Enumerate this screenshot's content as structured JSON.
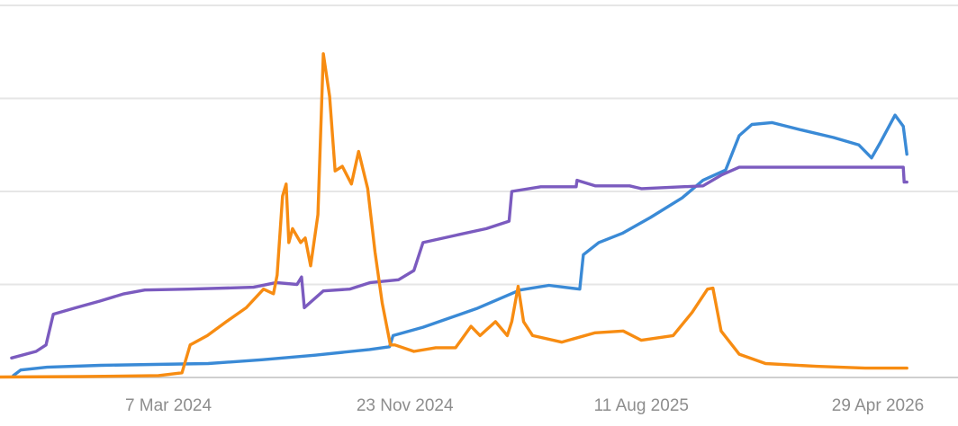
{
  "chart_data": {
    "type": "line",
    "title": "",
    "xlabel": "",
    "ylabel": "",
    "grid": true,
    "legend": "none",
    "x_axis": {
      "type": "date",
      "tick_labels": [
        "7 Mar 2024",
        "23 Nov 2024",
        "11 Aug 2025",
        "29 Apr 2026"
      ],
      "tick_dates": [
        "2024-03-07",
        "2024-11-23",
        "2025-08-11",
        "2026-04-29"
      ]
    },
    "y_axis": {
      "range": [
        0,
        4
      ],
      "gridlines": [
        0,
        1,
        2,
        3,
        4
      ],
      "tick_labels_visible": false
    },
    "series": [
      {
        "color": "#3a8ad6",
        "points": [
          [
            "2023-09-18",
            0.02
          ],
          [
            "2023-09-26",
            0.08
          ],
          [
            "2023-10-25",
            0.11
          ],
          [
            "2023-12-23",
            0.13
          ],
          [
            "2024-02-20",
            0.14
          ],
          [
            "2024-04-20",
            0.15
          ],
          [
            "2024-06-18",
            0.19
          ],
          [
            "2024-08-16",
            0.24
          ],
          [
            "2024-10-15",
            0.3
          ],
          [
            "2024-11-06",
            0.33
          ],
          [
            "2024-11-10",
            0.45
          ],
          [
            "2024-12-13",
            0.54
          ],
          [
            "2025-02-10",
            0.74
          ],
          [
            "2025-03-30",
            0.94
          ],
          [
            "2025-05-01",
            0.99
          ],
          [
            "2025-06-04",
            0.95
          ],
          [
            "2025-06-08",
            1.32
          ],
          [
            "2025-06-25",
            1.45
          ],
          [
            "2025-07-21",
            1.55
          ],
          [
            "2025-08-21",
            1.72
          ],
          [
            "2025-09-25",
            1.93
          ],
          [
            "2025-10-18",
            2.12
          ],
          [
            "2025-11-12",
            2.23
          ],
          [
            "2025-11-27",
            2.6
          ],
          [
            "2025-12-11",
            2.72
          ],
          [
            "2026-01-02",
            2.74
          ],
          [
            "2026-02-04",
            2.66
          ],
          [
            "2026-03-11",
            2.58
          ],
          [
            "2026-04-08",
            2.5
          ],
          [
            "2026-04-22",
            2.36
          ],
          [
            "2026-05-02",
            2.53
          ],
          [
            "2026-05-18",
            2.82
          ],
          [
            "2026-05-27",
            2.7
          ],
          [
            "2026-05-31",
            2.4
          ]
        ]
      },
      {
        "color": "#7b5bbf",
        "points": [
          [
            "2023-09-16",
            0.21
          ],
          [
            "2023-10-13",
            0.28
          ],
          [
            "2023-10-24",
            0.35
          ],
          [
            "2023-11-01",
            0.68
          ],
          [
            "2023-11-26",
            0.75
          ],
          [
            "2023-12-22",
            0.82
          ],
          [
            "2024-01-18",
            0.9
          ],
          [
            "2024-02-10",
            0.94
          ],
          [
            "2024-03-29",
            0.95
          ],
          [
            "2024-06-09",
            0.97
          ],
          [
            "2024-07-04",
            1.02
          ],
          [
            "2024-07-27",
            1.0
          ],
          [
            "2024-08-01",
            1.08
          ],
          [
            "2024-08-04",
            0.75
          ],
          [
            "2024-08-25",
            0.93
          ],
          [
            "2024-09-23",
            0.95
          ],
          [
            "2024-10-16",
            1.02
          ],
          [
            "2024-11-16",
            1.05
          ],
          [
            "2024-12-03",
            1.15
          ],
          [
            "2024-12-13",
            1.45
          ],
          [
            "2025-01-19",
            1.53
          ],
          [
            "2025-02-21",
            1.6
          ],
          [
            "2025-03-18",
            1.68
          ],
          [
            "2025-03-21",
            2.0
          ],
          [
            "2025-04-22",
            2.05
          ],
          [
            "2025-05-31",
            2.05
          ],
          [
            "2025-06-01",
            2.12
          ],
          [
            "2025-06-21",
            2.06
          ],
          [
            "2025-07-29",
            2.06
          ],
          [
            "2025-08-11",
            2.03
          ],
          [
            "2025-10-18",
            2.06
          ],
          [
            "2025-11-08",
            2.18
          ],
          [
            "2025-11-27",
            2.26
          ],
          [
            "2026-01-04",
            2.26
          ],
          [
            "2026-05-27",
            2.26
          ],
          [
            "2026-05-28",
            2.1
          ],
          [
            "2026-05-31",
            2.1
          ]
        ]
      },
      {
        "color": "#f78c12",
        "points": [
          [
            "2023-06-01",
            0.0
          ],
          [
            "2023-12-02",
            0.01
          ],
          [
            "2024-02-25",
            0.02
          ],
          [
            "2024-03-22",
            0.05
          ],
          [
            "2024-03-31",
            0.35
          ],
          [
            "2024-04-19",
            0.45
          ],
          [
            "2024-05-10",
            0.6
          ],
          [
            "2024-06-01",
            0.75
          ],
          [
            "2024-06-20",
            0.95
          ],
          [
            "2024-07-01",
            0.9
          ],
          [
            "2024-07-05",
            1.1
          ],
          [
            "2024-07-11",
            1.95
          ],
          [
            "2024-07-15",
            2.08
          ],
          [
            "2024-07-18",
            1.45
          ],
          [
            "2024-07-22",
            1.6
          ],
          [
            "2024-07-31",
            1.45
          ],
          [
            "2024-08-05",
            1.5
          ],
          [
            "2024-08-11",
            1.2
          ],
          [
            "2024-08-19",
            1.75
          ],
          [
            "2024-08-25",
            3.48
          ],
          [
            "2024-09-01",
            3.02
          ],
          [
            "2024-09-07",
            2.22
          ],
          [
            "2024-09-15",
            2.27
          ],
          [
            "2024-09-25",
            2.08
          ],
          [
            "2024-10-03",
            2.43
          ],
          [
            "2024-10-13",
            2.03
          ],
          [
            "2024-10-21",
            1.35
          ],
          [
            "2024-10-29",
            0.8
          ],
          [
            "2024-11-07",
            0.35
          ],
          [
            "2024-11-12",
            0.35
          ],
          [
            "2024-12-03",
            0.28
          ],
          [
            "2024-12-27",
            0.32
          ],
          [
            "2025-01-18",
            0.32
          ],
          [
            "2025-02-04",
            0.55
          ],
          [
            "2025-02-14",
            0.45
          ],
          [
            "2025-03-03",
            0.6
          ],
          [
            "2025-03-16",
            0.45
          ],
          [
            "2025-03-21",
            0.6
          ],
          [
            "2025-03-28",
            0.98
          ],
          [
            "2025-04-03",
            0.6
          ],
          [
            "2025-04-13",
            0.45
          ],
          [
            "2025-05-15",
            0.38
          ],
          [
            "2025-06-21",
            0.48
          ],
          [
            "2025-07-22",
            0.5
          ],
          [
            "2025-08-11",
            0.4
          ],
          [
            "2025-09-15",
            0.45
          ],
          [
            "2025-10-06",
            0.7
          ],
          [
            "2025-10-23",
            0.95
          ],
          [
            "2025-10-29",
            0.96
          ],
          [
            "2025-11-07",
            0.5
          ],
          [
            "2025-11-27",
            0.25
          ],
          [
            "2025-12-26",
            0.15
          ],
          [
            "2026-02-20",
            0.12
          ],
          [
            "2026-04-15",
            0.1
          ],
          [
            "2026-05-31",
            0.1
          ]
        ]
      }
    ]
  }
}
